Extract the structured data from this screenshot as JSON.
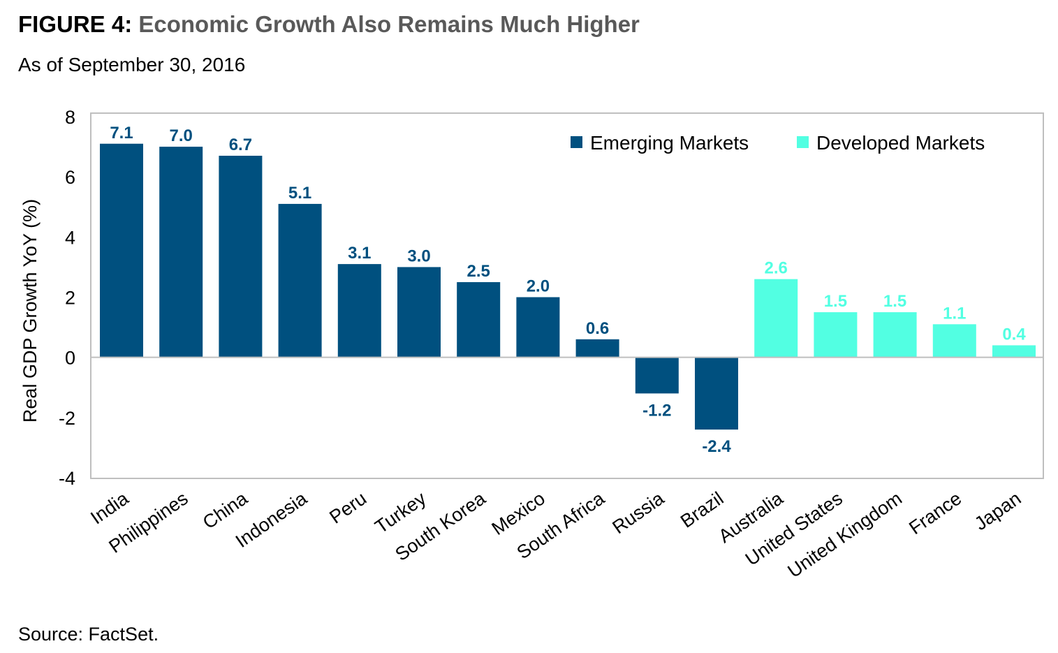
{
  "header": {
    "figure_label": "FIGURE 4:",
    "title": "Economic Growth Also Remains Much Higher",
    "subtitle": "As of September 30, 2016"
  },
  "footer": {
    "source": "Source: FactSet."
  },
  "colors": {
    "emerging": "#00507F",
    "developed": "#52FFE2",
    "emerging_label": "#00507F",
    "developed_label": "#52FFE2",
    "gridline": "#BFBFBF"
  },
  "chart_data": {
    "type": "bar",
    "title": "",
    "xlabel": "",
    "ylabel": "Real GDP Growth YoY (%)",
    "ylim": [
      -4,
      8
    ],
    "yticks": [
      8,
      6,
      4,
      2,
      0,
      -2,
      -4
    ],
    "categories": [
      "India",
      "Philippines",
      "China",
      "Indonesia",
      "Peru",
      "Turkey",
      "South Korea",
      "Mexico",
      "South Africa",
      "Russia",
      "Brazil",
      "Australia",
      "United States",
      "United Kingdom",
      "France",
      "Japan"
    ],
    "values": [
      7.1,
      7.0,
      6.7,
      5.1,
      3.1,
      3.0,
      2.5,
      2.0,
      0.6,
      -1.2,
      -2.4,
      2.6,
      1.5,
      1.5,
      1.1,
      0.4
    ],
    "value_labels": [
      "7.1",
      "7.0",
      "6.7",
      "5.1",
      "3.1",
      "3.0",
      "2.5",
      "2.0",
      "0.6",
      "-1.2",
      "-2.4",
      "2.6",
      "1.5",
      "1.5",
      "1.1",
      "0.4"
    ],
    "groups": [
      "Emerging Markets",
      "Emerging Markets",
      "Emerging Markets",
      "Emerging Markets",
      "Emerging Markets",
      "Emerging Markets",
      "Emerging Markets",
      "Emerging Markets",
      "Emerging Markets",
      "Emerging Markets",
      "Emerging Markets",
      "Developed Markets",
      "Developed Markets",
      "Developed Markets",
      "Developed Markets",
      "Developed Markets"
    ],
    "legend": [
      {
        "name": "Emerging Markets",
        "color": "#00507F"
      },
      {
        "name": "Developed Markets",
        "color": "#52FFE2"
      }
    ],
    "legend_position": "top-right",
    "grid": false
  }
}
